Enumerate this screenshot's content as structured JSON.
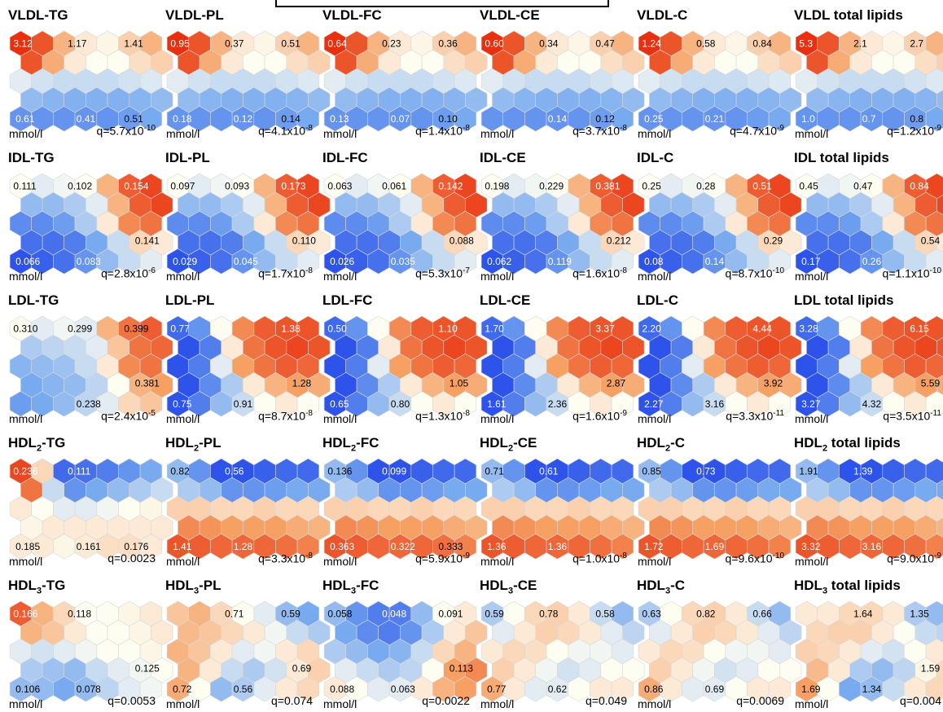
{
  "unit": "mmol/l",
  "colors": {
    "low": "#1a3de8",
    "mid": "#fdfdf2",
    "high": "#e8300f"
  },
  "chart_data": [
    {
      "type": "heatmap",
      "title": {
        "base": "VLDL",
        "sub": "",
        "suffix": "-TG"
      },
      "q": {
        "text": "q=5.7x10",
        "exp": "-10"
      },
      "pattern": "vldl",
      "annotations": [
        {
          "pos": "tl",
          "text": "3.12"
        },
        {
          "pos": "tm",
          "text": "1.17"
        },
        {
          "pos": "tr",
          "text": "1.41"
        },
        {
          "pos": "bl",
          "text": "0.61"
        },
        {
          "pos": "bm",
          "text": "0.41"
        },
        {
          "pos": "br",
          "text": "0.51"
        }
      ]
    },
    {
      "type": "heatmap",
      "title": {
        "base": "VLDL",
        "sub": "",
        "suffix": "-PL"
      },
      "q": {
        "text": "q=4.1x10",
        "exp": "-8"
      },
      "pattern": "vldl",
      "annotations": [
        {
          "pos": "tl",
          "text": "0.95"
        },
        {
          "pos": "tm",
          "text": "0.37"
        },
        {
          "pos": "tr",
          "text": "0.51"
        },
        {
          "pos": "bl",
          "text": "0.18"
        },
        {
          "pos": "bm",
          "text": "0.12"
        },
        {
          "pos": "br",
          "text": "0.14"
        }
      ]
    },
    {
      "type": "heatmap",
      "title": {
        "base": "VLDL",
        "sub": "",
        "suffix": "-FC"
      },
      "q": {
        "text": "q=1.4x10",
        "exp": "-8"
      },
      "pattern": "vldl",
      "annotations": [
        {
          "pos": "tl",
          "text": "0.64"
        },
        {
          "pos": "tm",
          "text": "0.23"
        },
        {
          "pos": "tr",
          "text": "0.36"
        },
        {
          "pos": "bl",
          "text": "0.13"
        },
        {
          "pos": "bm",
          "text": "0.07"
        },
        {
          "pos": "br",
          "text": "0.10"
        }
      ]
    },
    {
      "type": "heatmap",
      "title": {
        "base": "VLDL",
        "sub": "",
        "suffix": "-CE"
      },
      "q": {
        "text": "q=3.7x10",
        "exp": "-8"
      },
      "pattern": "vldl",
      "annotations": [
        {
          "pos": "tl",
          "text": "0.60"
        },
        {
          "pos": "tm",
          "text": "0.34"
        },
        {
          "pos": "tr",
          "text": "0.47"
        },
        {
          "pos": "bm",
          "text": "0.14"
        },
        {
          "pos": "br",
          "text": "0.12"
        }
      ]
    },
    {
      "type": "heatmap",
      "title": {
        "base": "VLDL",
        "sub": "",
        "suffix": "-C"
      },
      "q": {
        "text": "q=4.7x10",
        "exp": "-9"
      },
      "pattern": "vldl",
      "annotations": [
        {
          "pos": "tl",
          "text": "1.24"
        },
        {
          "pos": "tm",
          "text": "0.58"
        },
        {
          "pos": "tr",
          "text": "0.84"
        },
        {
          "pos": "bl",
          "text": "0.25"
        },
        {
          "pos": "bm",
          "text": "0.21"
        }
      ]
    },
    {
      "type": "heatmap",
      "title": {
        "base": "VLDL",
        "sub": "",
        "suffix": " total lipids"
      },
      "q": {
        "text": "q=1.2x10",
        "exp": "-9"
      },
      "pattern": "vldl",
      "annotations": [
        {
          "pos": "tl",
          "text": "5.3"
        },
        {
          "pos": "tm",
          "text": "2.1"
        },
        {
          "pos": "tr",
          "text": "2.7"
        },
        {
          "pos": "bl",
          "text": "1.0"
        },
        {
          "pos": "bm",
          "text": "0.7"
        },
        {
          "pos": "br",
          "text": "0.8"
        }
      ]
    },
    {
      "type": "heatmap",
      "title": {
        "base": "IDL",
        "sub": "",
        "suffix": "-TG"
      },
      "q": {
        "text": "q=2.8x10",
        "exp": "-6"
      },
      "pattern": "idl",
      "annotations": [
        {
          "pos": "tl",
          "text": "0.111"
        },
        {
          "pos": "tm",
          "text": "0.102"
        },
        {
          "pos": "tr",
          "text": "0.154"
        },
        {
          "pos": "mr",
          "text": "0.141"
        },
        {
          "pos": "bl",
          "text": "0.066"
        },
        {
          "pos": "bm",
          "text": "0.083"
        }
      ]
    },
    {
      "type": "heatmap",
      "title": {
        "base": "IDL",
        "sub": "",
        "suffix": "-PL"
      },
      "q": {
        "text": "q=1.7x10",
        "exp": "-8"
      },
      "pattern": "idl",
      "annotations": [
        {
          "pos": "tl",
          "text": "0.097"
        },
        {
          "pos": "tm",
          "text": "0.093"
        },
        {
          "pos": "tr",
          "text": "0.173"
        },
        {
          "pos": "mr",
          "text": "0.110"
        },
        {
          "pos": "bl",
          "text": "0.029"
        },
        {
          "pos": "bm",
          "text": "0.045"
        }
      ]
    },
    {
      "type": "heatmap",
      "title": {
        "base": "IDL",
        "sub": "",
        "suffix": "-FC"
      },
      "q": {
        "text": "q=5.3x10",
        "exp": "-7"
      },
      "pattern": "idl",
      "annotations": [
        {
          "pos": "tl",
          "text": "0.063"
        },
        {
          "pos": "tm",
          "text": "0.061"
        },
        {
          "pos": "tr",
          "text": "0.142"
        },
        {
          "pos": "mr",
          "text": "0.088"
        },
        {
          "pos": "bl",
          "text": "0.026"
        },
        {
          "pos": "bm",
          "text": "0.035"
        }
      ]
    },
    {
      "type": "heatmap",
      "title": {
        "base": "IDL",
        "sub": "",
        "suffix": "-CE"
      },
      "q": {
        "text": "q=1.6x10",
        "exp": "-8"
      },
      "pattern": "idl",
      "annotations": [
        {
          "pos": "tl",
          "text": "0.198"
        },
        {
          "pos": "tm",
          "text": "0.229"
        },
        {
          "pos": "tr",
          "text": "0.381"
        },
        {
          "pos": "mr",
          "text": "0.212"
        },
        {
          "pos": "bl",
          "text": "0.062"
        },
        {
          "pos": "bm",
          "text": "0.119"
        }
      ]
    },
    {
      "type": "heatmap",
      "title": {
        "base": "IDL",
        "sub": "",
        "suffix": "-C"
      },
      "q": {
        "text": "q=8.7x10",
        "exp": "-10"
      },
      "pattern": "idl",
      "annotations": [
        {
          "pos": "tl",
          "text": "0.25"
        },
        {
          "pos": "tm",
          "text": "0.28"
        },
        {
          "pos": "tr",
          "text": "0.51"
        },
        {
          "pos": "mr",
          "text": "0.29"
        },
        {
          "pos": "bl",
          "text": "0.08"
        },
        {
          "pos": "bm",
          "text": "0.14"
        }
      ]
    },
    {
      "type": "heatmap",
      "title": {
        "base": "IDL",
        "sub": "",
        "suffix": " total lipids"
      },
      "q": {
        "text": "q=1.1x10",
        "exp": "-10"
      },
      "pattern": "idl",
      "annotations": [
        {
          "pos": "tl",
          "text": "0.45"
        },
        {
          "pos": "tm",
          "text": "0.47"
        },
        {
          "pos": "tr",
          "text": "0.84"
        },
        {
          "pos": "mr",
          "text": "0.54"
        },
        {
          "pos": "bl",
          "text": "0.17"
        },
        {
          "pos": "bm",
          "text": "0.26"
        }
      ]
    },
    {
      "type": "heatmap",
      "title": {
        "base": "LDL",
        "sub": "",
        "suffix": "-TG"
      },
      "q": {
        "text": "q=2.4x10",
        "exp": "-5"
      },
      "pattern": "ldltg",
      "annotations": [
        {
          "pos": "tl",
          "text": "0.310"
        },
        {
          "pos": "tm",
          "text": "0.299"
        },
        {
          "pos": "tr",
          "text": "0.399"
        },
        {
          "pos": "mr",
          "text": "0.381"
        },
        {
          "pos": "bm",
          "text": "0.238"
        }
      ]
    },
    {
      "type": "heatmap",
      "title": {
        "base": "LDL",
        "sub": "",
        "suffix": "-PL"
      },
      "q": {
        "text": "q=8.7x10",
        "exp": "-8"
      },
      "pattern": "ldl",
      "annotations": [
        {
          "pos": "tl",
          "text": "0.77"
        },
        {
          "pos": "tr",
          "text": "1.38"
        },
        {
          "pos": "mr",
          "text": "1.28"
        },
        {
          "pos": "bl",
          "text": "0.75"
        },
        {
          "pos": "bm",
          "text": "0.91"
        }
      ]
    },
    {
      "type": "heatmap",
      "title": {
        "base": "LDL",
        "sub": "",
        "suffix": "-FC"
      },
      "q": {
        "text": "q=1.3x10",
        "exp": "-8"
      },
      "pattern": "ldl",
      "annotations": [
        {
          "pos": "tl",
          "text": "0.50"
        },
        {
          "pos": "tr",
          "text": "1.10"
        },
        {
          "pos": "mr",
          "text": "1.05"
        },
        {
          "pos": "bl",
          "text": "0.65"
        },
        {
          "pos": "bm",
          "text": "0.80"
        }
      ]
    },
    {
      "type": "heatmap",
      "title": {
        "base": "LDL",
        "sub": "",
        "suffix": "-CE"
      },
      "q": {
        "text": "q=1.6x10",
        "exp": "-9"
      },
      "pattern": "ldl",
      "annotations": [
        {
          "pos": "tl",
          "text": "1.70"
        },
        {
          "pos": "tr",
          "text": "3.37"
        },
        {
          "pos": "mr",
          "text": "2.87"
        },
        {
          "pos": "bl",
          "text": "1.61"
        },
        {
          "pos": "bm",
          "text": "2.36"
        }
      ]
    },
    {
      "type": "heatmap",
      "title": {
        "base": "LDL",
        "sub": "",
        "suffix": "-C"
      },
      "q": {
        "text": "q=3.3x10",
        "exp": "-11"
      },
      "pattern": "ldl",
      "annotations": [
        {
          "pos": "tl",
          "text": "2.20"
        },
        {
          "pos": "tr",
          "text": "4.44"
        },
        {
          "pos": "mr",
          "text": "3.92"
        },
        {
          "pos": "bl",
          "text": "2.27"
        },
        {
          "pos": "bm",
          "text": "3.16"
        }
      ]
    },
    {
      "type": "heatmap",
      "title": {
        "base": "LDL",
        "sub": "",
        "suffix": " total lipids"
      },
      "q": {
        "text": "q=3.5x10",
        "exp": "-11"
      },
      "pattern": "ldl",
      "annotations": [
        {
          "pos": "tl",
          "text": "3.28"
        },
        {
          "pos": "tr",
          "text": "6.15"
        },
        {
          "pos": "mr",
          "text": "5.59"
        },
        {
          "pos": "bl",
          "text": "3.27"
        },
        {
          "pos": "bm",
          "text": "4.32"
        }
      ]
    },
    {
      "type": "heatmap",
      "title": {
        "base": "HDL",
        "sub": "2",
        "suffix": "-TG"
      },
      "q": {
        "text": "q=0.0023",
        "exp": ""
      },
      "pattern": "hdl2tg",
      "annotations": [
        {
          "pos": "tl",
          "text": "0.236"
        },
        {
          "pos": "tm",
          "text": "0.111"
        },
        {
          "pos": "bl",
          "text": "0.185"
        },
        {
          "pos": "bm",
          "text": "0.161"
        },
        {
          "pos": "br",
          "text": "0.176"
        }
      ]
    },
    {
      "type": "heatmap",
      "title": {
        "base": "HDL",
        "sub": "2",
        "suffix": "-PL"
      },
      "q": {
        "text": "q=3.3x10",
        "exp": "-8"
      },
      "pattern": "hdl2",
      "annotations": [
        {
          "pos": "tl",
          "text": "0.82"
        },
        {
          "pos": "tm",
          "text": "0.56"
        },
        {
          "pos": "bl",
          "text": "1.41"
        },
        {
          "pos": "bm",
          "text": "1.28"
        }
      ]
    },
    {
      "type": "heatmap",
      "title": {
        "base": "HDL",
        "sub": "2",
        "suffix": "-FC"
      },
      "q": {
        "text": "q=5.9x10",
        "exp": "-9"
      },
      "pattern": "hdl2",
      "annotations": [
        {
          "pos": "tl",
          "text": "0.136"
        },
        {
          "pos": "tm",
          "text": "0.099"
        },
        {
          "pos": "bl",
          "text": "0.363"
        },
        {
          "pos": "bm",
          "text": "0.322"
        },
        {
          "pos": "br",
          "text": "0.333"
        }
      ]
    },
    {
      "type": "heatmap",
      "title": {
        "base": "HDL",
        "sub": "2",
        "suffix": "-CE"
      },
      "q": {
        "text": "q=1.0x10",
        "exp": "-8"
      },
      "pattern": "hdl2",
      "annotations": [
        {
          "pos": "tl",
          "text": "0.71"
        },
        {
          "pos": "tm",
          "text": "0.61"
        },
        {
          "pos": "bl",
          "text": "1.36"
        },
        {
          "pos": "bm",
          "text": "1.36"
        }
      ]
    },
    {
      "type": "heatmap",
      "title": {
        "base": "HDL",
        "sub": "2",
        "suffix": "-C"
      },
      "q": {
        "text": "q=9.6x10",
        "exp": "-10"
      },
      "pattern": "hdl2",
      "annotations": [
        {
          "pos": "tl",
          "text": "0.85"
        },
        {
          "pos": "tm",
          "text": "0.73"
        },
        {
          "pos": "bl",
          "text": "1.72"
        },
        {
          "pos": "bm",
          "text": "1.69"
        }
      ]
    },
    {
      "type": "heatmap",
      "title": {
        "base": "HDL",
        "sub": "2",
        "suffix": " total lipids"
      },
      "q": {
        "text": "q=9.0x10",
        "exp": "-9"
      },
      "pattern": "hdl2",
      "annotations": [
        {
          "pos": "tl",
          "text": "1.91"
        },
        {
          "pos": "tm",
          "text": "1.39"
        },
        {
          "pos": "bl",
          "text": "3.32"
        },
        {
          "pos": "bm",
          "text": "3.16"
        }
      ]
    },
    {
      "type": "heatmap",
      "title": {
        "base": "HDL",
        "sub": "3",
        "suffix": "-TG"
      },
      "q": {
        "text": "q=0.0053",
        "exp": ""
      },
      "pattern": "hdl3tg",
      "annotations": [
        {
          "pos": "tl",
          "text": "0.166"
        },
        {
          "pos": "tm",
          "text": "0.118"
        },
        {
          "pos": "mr",
          "text": "0.125"
        },
        {
          "pos": "bl",
          "text": "0.106"
        },
        {
          "pos": "bm",
          "text": "0.078"
        }
      ]
    },
    {
      "type": "heatmap",
      "title": {
        "base": "HDL",
        "sub": "3",
        "suffix": "-PL"
      },
      "q": {
        "text": "q=0.074",
        "exp": ""
      },
      "pattern": "hdl3pl",
      "annotations": [
        {
          "pos": "tm",
          "text": "0.71"
        },
        {
          "pos": "tr",
          "text": "0.59"
        },
        {
          "pos": "mr",
          "text": "0.69"
        },
        {
          "pos": "bl",
          "text": "0.72"
        },
        {
          "pos": "bm",
          "text": "0.56"
        }
      ]
    },
    {
      "type": "heatmap",
      "title": {
        "base": "HDL",
        "sub": "3",
        "suffix": "-FC"
      },
      "q": {
        "text": "q=0.0022",
        "exp": ""
      },
      "pattern": "hdl3fc",
      "annotations": [
        {
          "pos": "tl",
          "text": "0.058"
        },
        {
          "pos": "tm",
          "text": "0.048"
        },
        {
          "pos": "tr",
          "text": "0.091"
        },
        {
          "pos": "bm",
          "text": "0.063"
        },
        {
          "pos": "mr",
          "text": "0.113"
        },
        {
          "pos": "bl",
          "text": "0.088"
        }
      ]
    },
    {
      "type": "heatmap",
      "title": {
        "base": "HDL",
        "sub": "3",
        "suffix": "-CE"
      },
      "q": {
        "text": "q=0.049",
        "exp": ""
      },
      "pattern": "hdl3",
      "annotations": [
        {
          "pos": "tl",
          "text": "0.59"
        },
        {
          "pos": "tm",
          "text": "0.78"
        },
        {
          "pos": "tr",
          "text": "0.58"
        },
        {
          "pos": "bl",
          "text": "0.77"
        },
        {
          "pos": "bm",
          "text": "0.62"
        }
      ]
    },
    {
      "type": "heatmap",
      "title": {
        "base": "HDL",
        "sub": "3",
        "suffix": "-C"
      },
      "q": {
        "text": "q=0.0069",
        "exp": ""
      },
      "pattern": "hdl3",
      "annotations": [
        {
          "pos": "tl",
          "text": "0.63"
        },
        {
          "pos": "tm",
          "text": "0.82"
        },
        {
          "pos": "tr",
          "text": "0.66"
        },
        {
          "pos": "bl",
          "text": "0.86"
        },
        {
          "pos": "bm",
          "text": "0.69"
        }
      ]
    },
    {
      "type": "heatmap",
      "title": {
        "base": "HDL",
        "sub": "3",
        "suffix": " total lipids"
      },
      "q": {
        "text": "q=0.004",
        "exp": ""
      },
      "pattern": "hdl3tot",
      "annotations": [
        {
          "pos": "tm",
          "text": "1.64"
        },
        {
          "pos": "tr",
          "text": "1.35"
        },
        {
          "pos": "mr",
          "text": "1.59"
        },
        {
          "pos": "bl",
          "text": "1.69"
        },
        {
          "pos": "bm",
          "text": "1.34"
        }
      ]
    }
  ]
}
